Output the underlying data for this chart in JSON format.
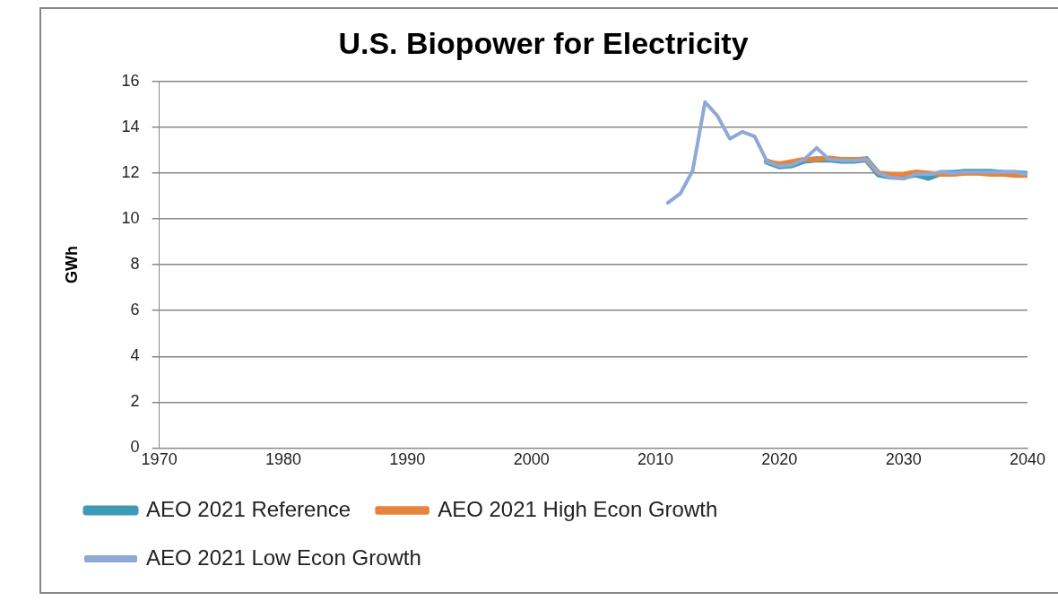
{
  "chart_data": {
    "type": "line",
    "title": "U.S. Biopower for Electricity",
    "ylabel": "GWh",
    "x": [
      2011,
      2012,
      2013,
      2014,
      2015,
      2016,
      2017,
      2018,
      2019,
      2020,
      2021,
      2022,
      2023,
      2024,
      2025,
      2026,
      2027,
      2028,
      2029,
      2030,
      2031,
      2032,
      2033,
      2034,
      2035,
      2036,
      2037,
      2038,
      2039,
      2040
    ],
    "series": [
      {
        "name": "AEO 2021 Reference",
        "color": "#3d9bb8",
        "values": [
          null,
          null,
          null,
          null,
          null,
          null,
          null,
          null,
          12.5,
          12.3,
          12.35,
          12.55,
          12.6,
          12.6,
          12.55,
          12.55,
          12.6,
          11.95,
          11.85,
          11.85,
          11.95,
          11.8,
          12.0,
          12.0,
          12.05,
          12.05,
          12.05,
          12.0,
          12.0,
          11.95
        ]
      },
      {
        "name": "AEO 2021 High Econ Growth",
        "color": "#e6843c",
        "values": [
          null,
          null,
          null,
          null,
          null,
          null,
          null,
          null,
          12.5,
          12.4,
          12.5,
          12.6,
          12.6,
          12.65,
          12.6,
          12.6,
          12.6,
          12.0,
          11.95,
          11.95,
          12.05,
          12.0,
          11.95,
          11.95,
          12.0,
          12.0,
          11.95,
          11.95,
          11.9,
          11.9
        ]
      },
      {
        "name": "AEO 2021 Low Econ Growth",
        "color": "#8ea9d6",
        "values": [
          10.7,
          11.1,
          12.1,
          15.1,
          14.5,
          13.5,
          13.8,
          13.6,
          12.5,
          12.3,
          12.35,
          12.6,
          13.1,
          12.6,
          12.55,
          12.55,
          12.6,
          12.0,
          11.8,
          11.75,
          11.95,
          11.95,
          12.05,
          12.0,
          12.05,
          12.05,
          12.05,
          12.05,
          12.05,
          11.95
        ]
      }
    ],
    "xlim": [
      1970,
      2040
    ],
    "xticks": [
      1970,
      1980,
      1990,
      2000,
      2010,
      2020,
      2030,
      2040
    ],
    "ylim": [
      0,
      16
    ],
    "yticks": [
      0,
      2,
      4,
      6,
      8,
      10,
      12,
      14,
      16
    ],
    "grid": "y",
    "legend": "bottom",
    "marker": "none",
    "line_style": "solid"
  }
}
